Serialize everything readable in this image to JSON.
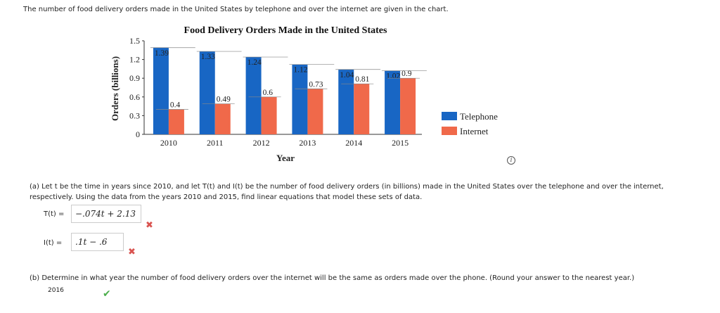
{
  "intro": "The number of food delivery orders made in the United States by telephone and over the internet are given in the chart.",
  "info_icon": "i",
  "part_a": {
    "text": "(a)   Let t be the time in years since 2010, and let T(t) and I(t) be the number of food delivery orders (in billions) made in the United States over the telephone and over the internet, respectively. Using the data from the years 2010 and 2015, find linear equations that model these sets of data.",
    "t_label": "T(t)  =",
    "t_value": "−.074t + 2.13",
    "i_label": "I(t)  =",
    "i_value": ".1t − .6",
    "wrong_mark": "✖"
  },
  "part_b": {
    "text": "(b)   Determine in what year the number of food delivery orders over the internet will be the same as orders made over the phone. (Round your answer to the nearest year.)",
    "answer": "2016",
    "correct_mark": "✔"
  },
  "colors": {
    "telephone": "#1866c4",
    "internet": "#f0694a"
  },
  "chart_data": {
    "type": "bar",
    "title": "Food Delivery Orders Made in the United States",
    "xlabel": "Year",
    "ylabel": "Orders (billions)",
    "categories": [
      "2010",
      "2011",
      "2012",
      "2013",
      "2014",
      "2015"
    ],
    "ylim": [
      0,
      1.5
    ],
    "yticks": [
      "0",
      "0.3",
      "0.6",
      "0.9",
      "1.2",
      "1.5"
    ],
    "series": [
      {
        "name": "Telephone",
        "values": [
          1.39,
          1.33,
          1.24,
          1.12,
          1.04,
          1.02
        ],
        "labels": [
          "1.39",
          "1.33",
          "1.24",
          "1.12",
          "1.04",
          "1.02"
        ]
      },
      {
        "name": "Internet",
        "values": [
          0.4,
          0.49,
          0.6,
          0.73,
          0.81,
          0.9
        ],
        "labels": [
          "0.4",
          "0.49",
          "0.6",
          "0.73",
          "0.81",
          "0.9"
        ]
      }
    ],
    "legend": "right"
  }
}
